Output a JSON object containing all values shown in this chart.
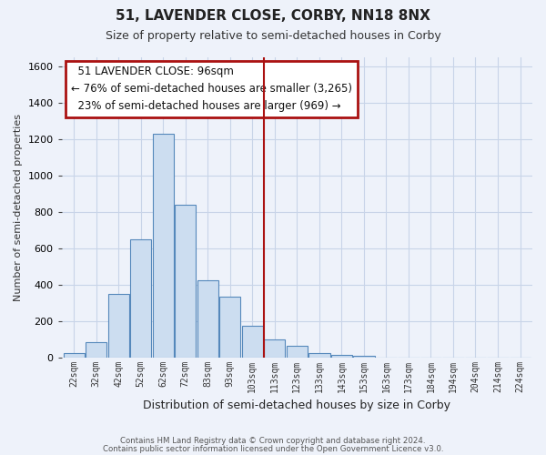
{
  "title": "51, LAVENDER CLOSE, CORBY, NN18 8NX",
  "subtitle": "Size of property relative to semi-detached houses in Corby",
  "xlabel": "Distribution of semi-detached houses by size in Corby",
  "ylabel": "Number of semi-detached properties",
  "footnote1": "Contains HM Land Registry data © Crown copyright and database right 2024.",
  "footnote2": "Contains public sector information licensed under the Open Government Licence v3.0.",
  "bar_labels": [
    "22sqm",
    "32sqm",
    "42sqm",
    "52sqm",
    "62sqm",
    "72sqm",
    "83sqm",
    "93sqm",
    "103sqm",
    "113sqm",
    "123sqm",
    "133sqm",
    "143sqm",
    "153sqm",
    "163sqm",
    "173sqm",
    "184sqm",
    "194sqm",
    "204sqm",
    "214sqm",
    "224sqm"
  ],
  "bar_values": [
    25,
    85,
    350,
    650,
    1230,
    840,
    425,
    335,
    175,
    100,
    65,
    25,
    15,
    10,
    0,
    0,
    0,
    0,
    0,
    0,
    0
  ],
  "bar_color": "#ccddf0",
  "bar_edge_color": "#5588bb",
  "vline_color": "#aa1111",
  "annotation_box_edge": "#aa1111",
  "ylim": [
    0,
    1650
  ],
  "yticks": [
    0,
    200,
    400,
    600,
    800,
    1000,
    1200,
    1400,
    1600
  ],
  "grid_color": "#c8d4e8",
  "bg_color": "#eef2fa",
  "property_label": "51 LAVENDER CLOSE: 96sqm",
  "pct_smaller": 76,
  "count_smaller": 3265,
  "pct_larger": 23,
  "count_larger": 969,
  "vline_position": 8.5
}
